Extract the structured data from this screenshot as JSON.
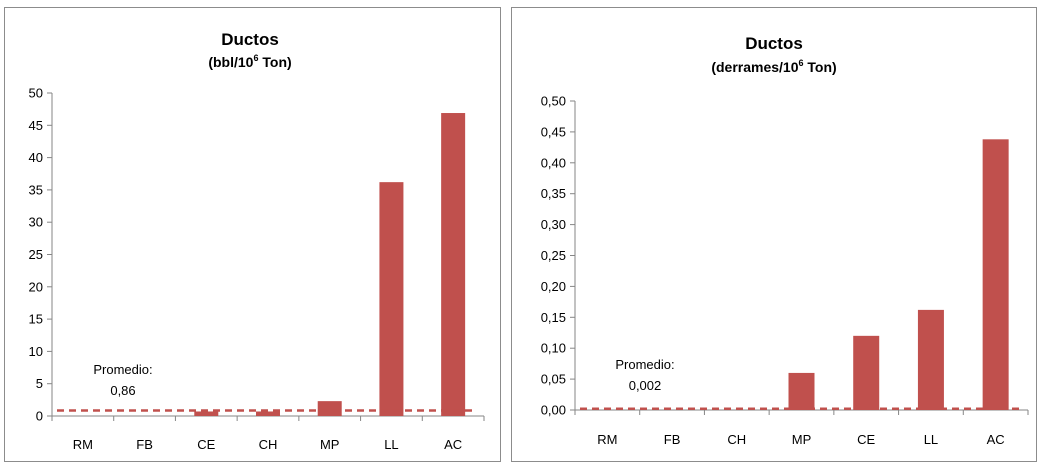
{
  "chart_data": [
    {
      "type": "bar",
      "title": "Ductos",
      "subtitle_pre": "(bbl/10",
      "subtitle_sup": "6",
      "subtitle_post": " Ton)",
      "categories": [
        "RM",
        "FB",
        "CE",
        "CH",
        "MP",
        "LL",
        "AC"
      ],
      "values": [
        0,
        0,
        0.7,
        0.7,
        2.3,
        36.2,
        46.9
      ],
      "ylim": [
        0,
        50
      ],
      "yticks": [
        "0",
        "5",
        "10",
        "15",
        "20",
        "25",
        "30",
        "35",
        "40",
        "45",
        "50"
      ],
      "average": 0.86,
      "average_label_line1": "Promedio:",
      "average_label_line2": "0,86",
      "bar_color": "#c0504d",
      "average_color": "#c0504d",
      "grid": false
    },
    {
      "type": "bar",
      "title": "Ductos",
      "subtitle_pre": "(derrames/10",
      "subtitle_sup": "6",
      "subtitle_post": " Ton)",
      "categories": [
        "RM",
        "FB",
        "CH",
        "MP",
        "CE",
        "LL",
        "AC"
      ],
      "values": [
        0,
        0,
        0,
        0.06,
        0.12,
        0.162,
        0.438
      ],
      "ylim": [
        0,
        0.5
      ],
      "yticks": [
        "0,00",
        "0,05",
        "0,10",
        "0,15",
        "0,20",
        "0,25",
        "0,30",
        "0,35",
        "0,40",
        "0,45",
        "0,50"
      ],
      "average": 0.002,
      "average_label_line1": "Promedio:",
      "average_label_line2": "0,002",
      "bar_color": "#c0504d",
      "average_color": "#c0504d",
      "grid": false
    }
  ]
}
